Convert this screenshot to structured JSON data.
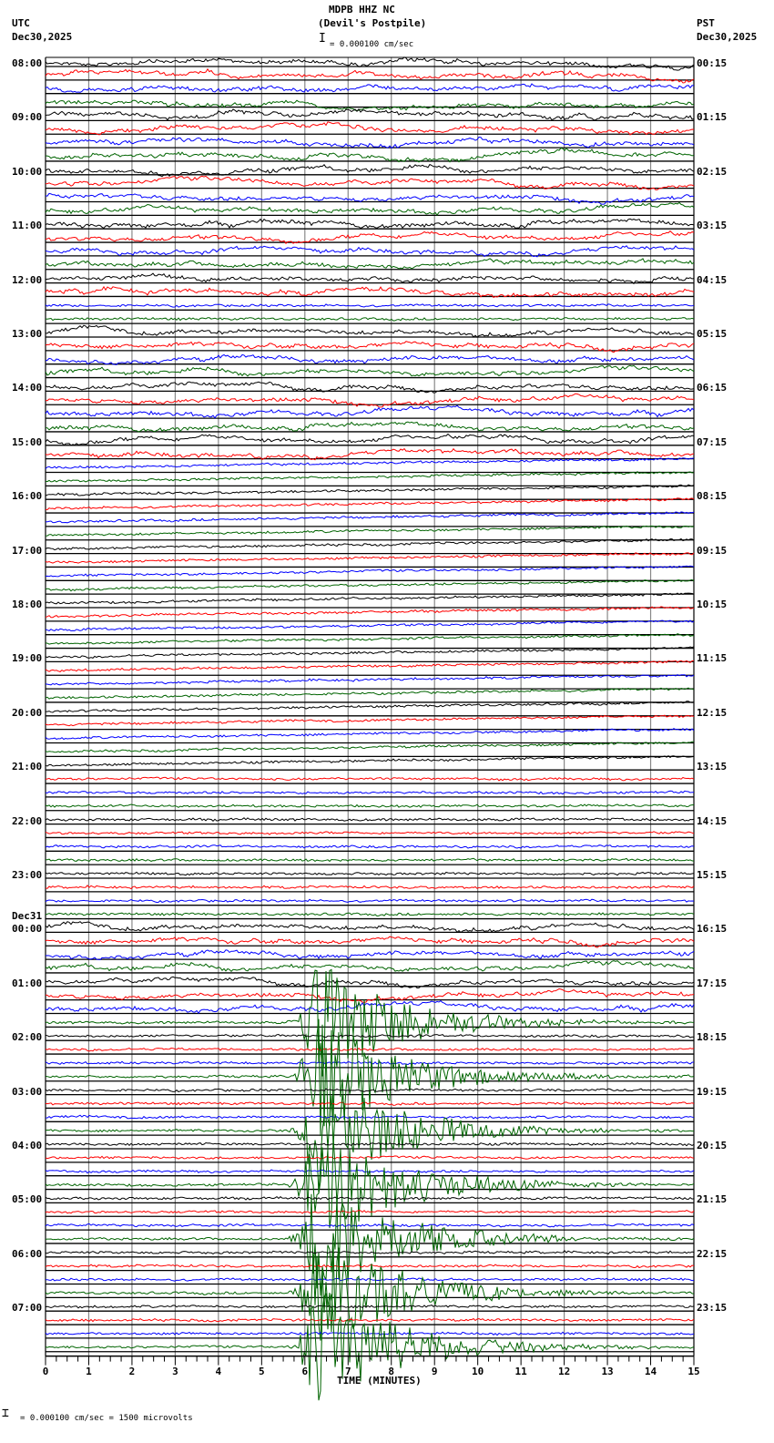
{
  "header": {
    "station": "MDPB HHZ NC",
    "location": "(Devil's Postpile)",
    "scale_text": "= 0.000100 cm/sec",
    "left_tz": "UTC",
    "left_date": "Dec30,2025",
    "right_tz": "PST",
    "right_date": "Dec30,2025"
  },
  "footer": {
    "scale_text": "= 0.000100 cm/sec =    1500 microvolts",
    "x_axis_title": "TIME (MINUTES)"
  },
  "colors": {
    "trace_cycle": [
      "#000000",
      "#ff0000",
      "#0000ff",
      "#006400"
    ],
    "grid_h": "#000000",
    "grid_v": "#888888"
  },
  "chart_data": {
    "type": "line",
    "title": "MDPB HHZ NC (Devil's Postpile)",
    "subtitle": "= 0.000100 cm/sec",
    "xlabel": "TIME (MINUTES)",
    "ylabel": "",
    "x_ticks": [
      "0",
      "1",
      "2",
      "3",
      "4",
      "5",
      "6",
      "7",
      "8",
      "9",
      "10",
      "11",
      "12",
      "13",
      "14",
      "15"
    ],
    "xlim": [
      0,
      15
    ],
    "traces_per_hour": 4,
    "trace_count": 96,
    "left_labels": [
      {
        "row": 0,
        "text": "08:00"
      },
      {
        "row": 4,
        "text": "09:00"
      },
      {
        "row": 8,
        "text": "10:00"
      },
      {
        "row": 12,
        "text": "11:00"
      },
      {
        "row": 16,
        "text": "12:00"
      },
      {
        "row": 20,
        "text": "13:00"
      },
      {
        "row": 24,
        "text": "14:00"
      },
      {
        "row": 28,
        "text": "15:00"
      },
      {
        "row": 32,
        "text": "16:00"
      },
      {
        "row": 36,
        "text": "17:00"
      },
      {
        "row": 40,
        "text": "18:00"
      },
      {
        "row": 44,
        "text": "19:00"
      },
      {
        "row": 48,
        "text": "20:00"
      },
      {
        "row": 52,
        "text": "21:00"
      },
      {
        "row": 56,
        "text": "22:00"
      },
      {
        "row": 60,
        "text": "23:00"
      },
      {
        "row": 64,
        "text": "00:00",
        "date": "Dec31"
      },
      {
        "row": 68,
        "text": "01:00"
      },
      {
        "row": 72,
        "text": "02:00"
      },
      {
        "row": 76,
        "text": "03:00"
      },
      {
        "row": 80,
        "text": "04:00"
      },
      {
        "row": 84,
        "text": "05:00"
      },
      {
        "row": 88,
        "text": "06:00"
      },
      {
        "row": 92,
        "text": "07:00"
      }
    ],
    "right_labels": [
      {
        "row": 0,
        "text": "00:15"
      },
      {
        "row": 4,
        "text": "01:15"
      },
      {
        "row": 8,
        "text": "02:15"
      },
      {
        "row": 12,
        "text": "03:15"
      },
      {
        "row": 16,
        "text": "04:15"
      },
      {
        "row": 20,
        "text": "05:15"
      },
      {
        "row": 24,
        "text": "06:15"
      },
      {
        "row": 28,
        "text": "07:15"
      },
      {
        "row": 32,
        "text": "08:15"
      },
      {
        "row": 36,
        "text": "09:15"
      },
      {
        "row": 40,
        "text": "10:15"
      },
      {
        "row": 44,
        "text": "11:15"
      },
      {
        "row": 48,
        "text": "12:15"
      },
      {
        "row": 52,
        "text": "13:15"
      },
      {
        "row": 56,
        "text": "14:15"
      },
      {
        "row": 60,
        "text": "15:15"
      },
      {
        "row": 64,
        "text": "16:15"
      },
      {
        "row": 68,
        "text": "17:15"
      },
      {
        "row": 72,
        "text": "18:15"
      },
      {
        "row": 76,
        "text": "19:15"
      },
      {
        "row": 80,
        "text": "20:15"
      },
      {
        "row": 84,
        "text": "21:15"
      },
      {
        "row": 88,
        "text": "22:15"
      },
      {
        "row": 92,
        "text": "23:15"
      }
    ],
    "noise_profile": {
      "high_activity_rows": [
        0,
        1,
        2,
        3,
        4,
        5,
        6,
        7,
        8,
        9,
        10,
        11,
        12,
        13,
        14,
        15,
        16,
        17,
        20,
        21,
        22,
        23,
        24,
        25,
        26,
        27,
        28,
        29,
        64,
        65,
        66,
        67,
        68,
        69,
        70
      ],
      "drift_rows_from": 30,
      "drift_rows_to": 52
    },
    "event": {
      "description": "large earthquake signal on green traces",
      "start_minute": 5.5,
      "peak_minute": 6.3,
      "rows_affected_from": 71,
      "rows_affected_to": 95
    }
  }
}
